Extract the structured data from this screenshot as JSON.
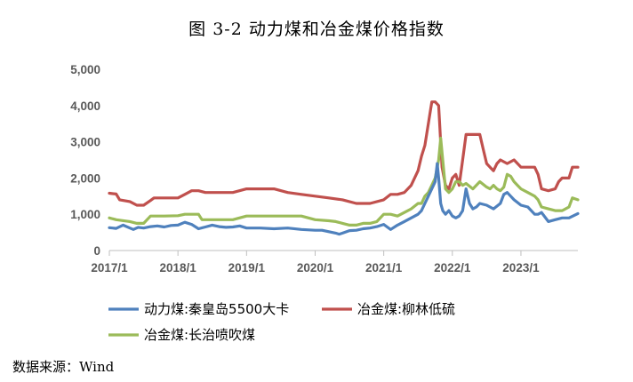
{
  "title": "图 3-2  动力煤和冶金煤价格指数",
  "source": "数据来源：Wind",
  "chart_data": {
    "type": "line",
    "title": "图 3-2  动力煤和冶金煤价格指数",
    "xlabel": "",
    "ylabel": "",
    "x_ticks": [
      "2017/1",
      "2018/1",
      "2019/1",
      "2020/1",
      "2021/1",
      "2022/1",
      "2023/1"
    ],
    "y_ticks": [
      "0",
      "1,000",
      "2,000",
      "3,000",
      "4,000",
      "5,000"
    ],
    "ylim": [
      0,
      5000
    ],
    "xlim": [
      2017.0,
      2023.83
    ],
    "grid": false,
    "legend_position": "bottom",
    "series": [
      {
        "name": "动力煤:秦皇岛5500大卡",
        "color": "#4f81bd",
        "x": [
          2017.0,
          2017.1,
          2017.2,
          2017.3,
          2017.35,
          2017.42,
          2017.5,
          2017.6,
          2017.7,
          2017.8,
          2017.9,
          2018.0,
          2018.1,
          2018.2,
          2018.3,
          2018.4,
          2018.5,
          2018.6,
          2018.7,
          2018.8,
          2018.9,
          2019.0,
          2019.2,
          2019.4,
          2019.6,
          2019.8,
          2020.0,
          2020.1,
          2020.2,
          2020.3,
          2020.35,
          2020.4,
          2020.5,
          2020.6,
          2020.7,
          2020.8,
          2020.9,
          2021.0,
          2021.05,
          2021.1,
          2021.2,
          2021.3,
          2021.4,
          2021.5,
          2021.55,
          2021.6,
          2021.65,
          2021.7,
          2021.75,
          2021.78,
          2021.8,
          2021.83,
          2021.86,
          2021.9,
          2021.95,
          2022.0,
          2022.05,
          2022.1,
          2022.15,
          2022.2,
          2022.25,
          2022.3,
          2022.35,
          2022.4,
          2022.5,
          2022.6,
          2022.7,
          2022.75,
          2022.8,
          2022.85,
          2022.9,
          2023.0,
          2023.1,
          2023.2,
          2023.25,
          2023.3,
          2023.4,
          2023.5,
          2023.6,
          2023.7,
          2023.83
        ],
        "values": [
          630,
          610,
          700,
          620,
          580,
          640,
          620,
          660,
          680,
          650,
          690,
          700,
          780,
          720,
          600,
          650,
          700,
          660,
          640,
          650,
          680,
          620,
          620,
          600,
          620,
          580,
          560,
          560,
          520,
          480,
          450,
          480,
          550,
          560,
          600,
          620,
          660,
          720,
          650,
          580,
          700,
          800,
          900,
          1000,
          1100,
          1300,
          1500,
          1700,
          1900,
          2400,
          2000,
          1300,
          1100,
          1000,
          1100,
          950,
          900,
          950,
          1100,
          1700,
          1300,
          1150,
          1200,
          1300,
          1250,
          1150,
          1300,
          1550,
          1600,
          1500,
          1400,
          1250,
          1200,
          1000,
          1000,
          1050,
          800,
          850,
          900,
          900,
          1020
        ]
      },
      {
        "name": "冶金煤:柳林低硫",
        "color": "#c0504d",
        "x": [
          2017.0,
          2017.1,
          2017.15,
          2017.3,
          2017.4,
          2017.5,
          2017.6,
          2017.65,
          2017.7,
          2017.8,
          2018.0,
          2018.1,
          2018.2,
          2018.3,
          2018.4,
          2018.5,
          2018.7,
          2018.8,
          2019.0,
          2019.2,
          2019.4,
          2019.6,
          2019.8,
          2020.0,
          2020.2,
          2020.4,
          2020.6,
          2020.8,
          2021.0,
          2021.1,
          2021.2,
          2021.3,
          2021.4,
          2021.5,
          2021.55,
          2021.6,
          2021.65,
          2021.7,
          2021.75,
          2021.8,
          2021.85,
          2021.9,
          2021.95,
          2022.0,
          2022.05,
          2022.1,
          2022.15,
          2022.2,
          2022.3,
          2022.4,
          2022.45,
          2022.5,
          2022.55,
          2022.6,
          2022.65,
          2022.7,
          2022.8,
          2022.9,
          2023.0,
          2023.1,
          2023.2,
          2023.25,
          2023.3,
          2023.4,
          2023.5,
          2023.55,
          2023.6,
          2023.7,
          2023.75,
          2023.83
        ],
        "values": [
          1580,
          1560,
          1400,
          1350,
          1250,
          1250,
          1380,
          1450,
          1450,
          1450,
          1450,
          1550,
          1650,
          1650,
          1600,
          1600,
          1600,
          1600,
          1700,
          1700,
          1700,
          1600,
          1550,
          1500,
          1450,
          1400,
          1300,
          1300,
          1400,
          1550,
          1550,
          1600,
          1800,
          2200,
          2600,
          2900,
          3500,
          4100,
          4100,
          4000,
          2300,
          1800,
          1700,
          2000,
          2100,
          1800,
          2500,
          3200,
          3200,
          3200,
          2800,
          2400,
          2300,
          2200,
          2400,
          2500,
          2400,
          2500,
          2300,
          2300,
          2300,
          2100,
          1700,
          1650,
          1700,
          1900,
          2000,
          2000,
          2300,
          2300
        ]
      },
      {
        "name": "冶金煤:长治喷吹煤",
        "color": "#9bbb59",
        "x": [
          2017.0,
          2017.1,
          2017.3,
          2017.4,
          2017.45,
          2017.5,
          2017.6,
          2017.7,
          2017.8,
          2018.0,
          2018.1,
          2018.2,
          2018.3,
          2018.35,
          2018.5,
          2018.7,
          2018.8,
          2019.0,
          2019.2,
          2019.4,
          2019.6,
          2019.8,
          2020.0,
          2020.2,
          2020.3,
          2020.4,
          2020.5,
          2020.6,
          2020.7,
          2020.8,
          2020.9,
          2021.0,
          2021.1,
          2021.2,
          2021.3,
          2021.4,
          2021.5,
          2021.55,
          2021.6,
          2021.65,
          2021.7,
          2021.75,
          2021.8,
          2021.83,
          2021.86,
          2021.9,
          2021.95,
          2022.0,
          2022.05,
          2022.1,
          2022.15,
          2022.2,
          2022.3,
          2022.4,
          2022.5,
          2022.55,
          2022.6,
          2022.65,
          2022.7,
          2022.75,
          2022.8,
          2022.85,
          2022.9,
          2022.95,
          2023.0,
          2023.1,
          2023.2,
          2023.25,
          2023.3,
          2023.4,
          2023.5,
          2023.6,
          2023.7,
          2023.75,
          2023.83
        ],
        "values": [
          900,
          850,
          800,
          750,
          750,
          750,
          950,
          950,
          950,
          960,
          1000,
          1000,
          1000,
          850,
          850,
          850,
          850,
          950,
          950,
          950,
          950,
          950,
          850,
          820,
          800,
          750,
          700,
          700,
          750,
          750,
          800,
          1000,
          1000,
          950,
          1050,
          1150,
          1300,
          1300,
          1500,
          1600,
          1800,
          2000,
          2500,
          3100,
          2500,
          1700,
          1600,
          1700,
          1900,
          1900,
          1800,
          1850,
          1700,
          1900,
          1750,
          1700,
          1800,
          1700,
          1650,
          1750,
          2100,
          2050,
          1900,
          1800,
          1700,
          1600,
          1500,
          1400,
          1200,
          1150,
          1100,
          1100,
          1200,
          1450,
          1400
        ]
      }
    ]
  }
}
